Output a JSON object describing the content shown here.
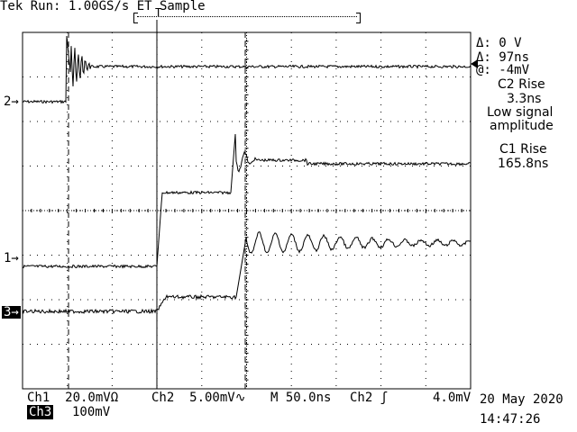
{
  "header": {
    "status": "Tek Run: 1.00GS/s ET Sample"
  },
  "readout": {
    "delta_v": "Δ: 0 V",
    "delta_t": "Δ: 97ns",
    "at": "@: -4mV",
    "m1": "C2 Rise",
    "m2": "3.3ns",
    "m3": "Low signal",
    "m4": "amplitude",
    "m5": "C1 Rise",
    "m6": "165.8ns"
  },
  "channel_markers": {
    "ch2": "2→",
    "ch1": "1→",
    "ch3": "3→"
  },
  "footer": {
    "ch1": "Ch1  20.0mVΩ",
    "ch2": "Ch2  5.00mV∿",
    "timebase": "M 50.0ns",
    "trigger": "Ch2 ʃ",
    "trigger_level": "4.0mV",
    "ch3_label": "Ch3",
    "ch3_scale": "100mV",
    "date": "20 May 2020",
    "time": "14:47:26"
  },
  "colors": {
    "background": "#ffffff",
    "trace": "#000000",
    "grid": "#000000"
  }
}
